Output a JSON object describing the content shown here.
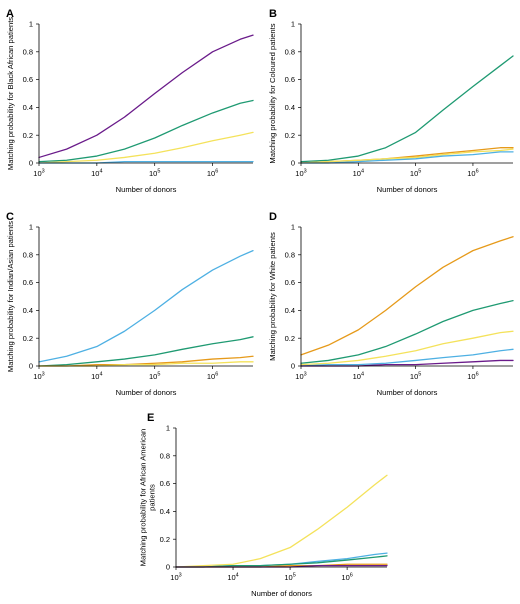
{
  "colors": {
    "purple": "#6a1b8a",
    "green": "#1f9a72",
    "yellow": "#f4e25b",
    "orange": "#e69a1a",
    "blue": "#4eb0e3",
    "axis": "#000000"
  },
  "chart_data": [
    {
      "panel": "A",
      "type": "line",
      "ylabel": "Matching probability for Black African patients",
      "xlabel": "Number of donors",
      "xscale": "log",
      "xlim": [
        1000,
        5000000
      ],
      "ylim": [
        0,
        1
      ],
      "xticks": [
        {
          "label": "10",
          "exp": "3",
          "value": 1000
        },
        {
          "label": "10",
          "exp": "4",
          "value": 10000
        },
        {
          "label": "10",
          "exp": "5",
          "value": 100000
        },
        {
          "label": "10",
          "exp": "6",
          "value": 1000000
        }
      ],
      "yticks": [
        "0",
        "0.2",
        "0.4",
        "0.6",
        "0.8",
        "1"
      ],
      "x": [
        1000,
        3000,
        10000,
        30000,
        100000,
        300000,
        1000000,
        3000000,
        5000000
      ],
      "series": [
        {
          "color": "purple",
          "values": [
            0.04,
            0.1,
            0.2,
            0.33,
            0.5,
            0.65,
            0.8,
            0.89,
            0.92
          ]
        },
        {
          "color": "green",
          "values": [
            0.01,
            0.02,
            0.05,
            0.1,
            0.18,
            0.27,
            0.36,
            0.43,
            0.45
          ]
        },
        {
          "color": "yellow",
          "values": [
            0.0,
            0.01,
            0.02,
            0.04,
            0.07,
            0.11,
            0.16,
            0.2,
            0.22
          ]
        },
        {
          "color": "blue",
          "values": [
            0.0,
            0.0,
            0.0,
            0.01,
            0.01,
            0.01,
            0.01,
            0.01,
            0.01
          ]
        }
      ]
    },
    {
      "panel": "B",
      "type": "line",
      "ylabel": "Matching probability for Coloured patients",
      "xlabel": "Number of donors",
      "xscale": "log",
      "xlim": [
        1000,
        5000000
      ],
      "ylim": [
        0,
        1
      ],
      "xticks": [
        {
          "label": "10",
          "exp": "3",
          "value": 1000
        },
        {
          "label": "10",
          "exp": "4",
          "value": 10000
        },
        {
          "label": "10",
          "exp": "5",
          "value": 100000
        },
        {
          "label": "10",
          "exp": "6",
          "value": 1000000
        }
      ],
      "yticks": [
        "0",
        "0.2",
        "0.4",
        "0.6",
        "0.8",
        "1"
      ],
      "x": [
        1000,
        3000,
        10000,
        30000,
        100000,
        300000,
        1000000,
        3000000,
        5000000
      ],
      "series": [
        {
          "color": "green",
          "values": [
            0.01,
            0.02,
            0.05,
            0.11,
            0.22,
            0.38,
            0.55,
            0.7,
            0.77
          ]
        },
        {
          "color": "orange",
          "values": [
            0.0,
            0.01,
            0.02,
            0.03,
            0.05,
            0.07,
            0.09,
            0.11,
            0.11
          ]
        },
        {
          "color": "yellow",
          "values": [
            0.0,
            0.01,
            0.02,
            0.03,
            0.04,
            0.06,
            0.08,
            0.09,
            0.1
          ]
        },
        {
          "color": "blue",
          "values": [
            0.0,
            0.0,
            0.01,
            0.02,
            0.03,
            0.05,
            0.06,
            0.08,
            0.08
          ]
        }
      ]
    },
    {
      "panel": "C",
      "type": "line",
      "ylabel": "Matching probability for Indian/Asian patients",
      "xlabel": "Number of donors",
      "xscale": "log",
      "xlim": [
        1000,
        5000000
      ],
      "ylim": [
        0,
        1
      ],
      "xticks": [
        {
          "label": "10",
          "exp": "3",
          "value": 1000
        },
        {
          "label": "10",
          "exp": "4",
          "value": 10000
        },
        {
          "label": "10",
          "exp": "5",
          "value": 100000
        },
        {
          "label": "10",
          "exp": "6",
          "value": 1000000
        }
      ],
      "yticks": [
        "0",
        "0.2",
        "0.4",
        "0.6",
        "0.8",
        "1"
      ],
      "x": [
        1000,
        3000,
        10000,
        30000,
        100000,
        300000,
        1000000,
        3000000,
        5000000
      ],
      "series": [
        {
          "color": "blue",
          "values": [
            0.03,
            0.07,
            0.14,
            0.25,
            0.4,
            0.55,
            0.69,
            0.79,
            0.83
          ]
        },
        {
          "color": "green",
          "values": [
            0.0,
            0.01,
            0.03,
            0.05,
            0.08,
            0.12,
            0.16,
            0.19,
            0.21
          ]
        },
        {
          "color": "orange",
          "values": [
            0.0,
            0.0,
            0.01,
            0.01,
            0.02,
            0.03,
            0.05,
            0.06,
            0.07
          ]
        },
        {
          "color": "yellow",
          "values": [
            0.0,
            0.0,
            0.0,
            0.01,
            0.01,
            0.02,
            0.02,
            0.03,
            0.03
          ]
        }
      ]
    },
    {
      "panel": "D",
      "type": "line",
      "ylabel": "Matching probability for White patients",
      "xlabel": "Number of donors",
      "xscale": "log",
      "xlim": [
        1000,
        5000000
      ],
      "ylim": [
        0,
        1
      ],
      "xticks": [
        {
          "label": "10",
          "exp": "3",
          "value": 1000
        },
        {
          "label": "10",
          "exp": "4",
          "value": 10000
        },
        {
          "label": "10",
          "exp": "5",
          "value": 100000
        },
        {
          "label": "10",
          "exp": "6",
          "value": 1000000
        }
      ],
      "yticks": [
        "0",
        "0.2",
        "0.4",
        "0.6",
        "0.8",
        "1"
      ],
      "x": [
        1000,
        3000,
        10000,
        30000,
        100000,
        300000,
        1000000,
        3000000,
        5000000
      ],
      "series": [
        {
          "color": "orange",
          "values": [
            0.08,
            0.15,
            0.26,
            0.4,
            0.57,
            0.71,
            0.83,
            0.9,
            0.93
          ]
        },
        {
          "color": "green",
          "values": [
            0.02,
            0.04,
            0.08,
            0.14,
            0.23,
            0.32,
            0.4,
            0.45,
            0.47
          ]
        },
        {
          "color": "yellow",
          "values": [
            0.01,
            0.02,
            0.04,
            0.07,
            0.11,
            0.16,
            0.2,
            0.24,
            0.25
          ]
        },
        {
          "color": "blue",
          "values": [
            0.0,
            0.01,
            0.01,
            0.02,
            0.04,
            0.06,
            0.08,
            0.11,
            0.12
          ]
        },
        {
          "color": "purple",
          "values": [
            0.0,
            0.0,
            0.0,
            0.01,
            0.01,
            0.02,
            0.03,
            0.04,
            0.04
          ]
        }
      ]
    },
    {
      "panel": "E",
      "type": "line",
      "ylabel": "Matching probability for African American patients",
      "xlabel": "Number of donors",
      "xscale": "log",
      "xlim": [
        1000,
        5000000
      ],
      "ylim": [
        0,
        1
      ],
      "xticks": [
        {
          "label": "10",
          "exp": "3",
          "value": 1000
        },
        {
          "label": "10",
          "exp": "4",
          "value": 10000
        },
        {
          "label": "10",
          "exp": "5",
          "value": 100000
        },
        {
          "label": "10",
          "exp": "6",
          "value": 1000000
        }
      ],
      "yticks": [
        "0",
        "0.2",
        "0.4",
        "0.6",
        "0.8",
        "1"
      ],
      "x": [
        1000,
        3000,
        10000,
        30000,
        100000,
        300000,
        1000000,
        3000000,
        5000000
      ],
      "series": [
        {
          "color": "yellow",
          "values": [
            0.0,
            0.01,
            0.02,
            0.06,
            0.14,
            0.27,
            0.43,
            0.59,
            0.66
          ]
        },
        {
          "color": "blue",
          "values": [
            0.0,
            0.0,
            0.01,
            0.01,
            0.02,
            0.04,
            0.06,
            0.09,
            0.1
          ]
        },
        {
          "color": "green",
          "values": [
            0.0,
            0.0,
            0.01,
            0.01,
            0.02,
            0.03,
            0.05,
            0.07,
            0.08
          ]
        },
        {
          "color": "orange",
          "values": [
            0.0,
            0.0,
            0.0,
            0.0,
            0.01,
            0.01,
            0.02,
            0.02,
            0.02
          ]
        },
        {
          "color": "purple",
          "values": [
            0.0,
            0.0,
            0.0,
            0.0,
            0.0,
            0.01,
            0.01,
            0.01,
            0.01
          ]
        }
      ]
    }
  ]
}
